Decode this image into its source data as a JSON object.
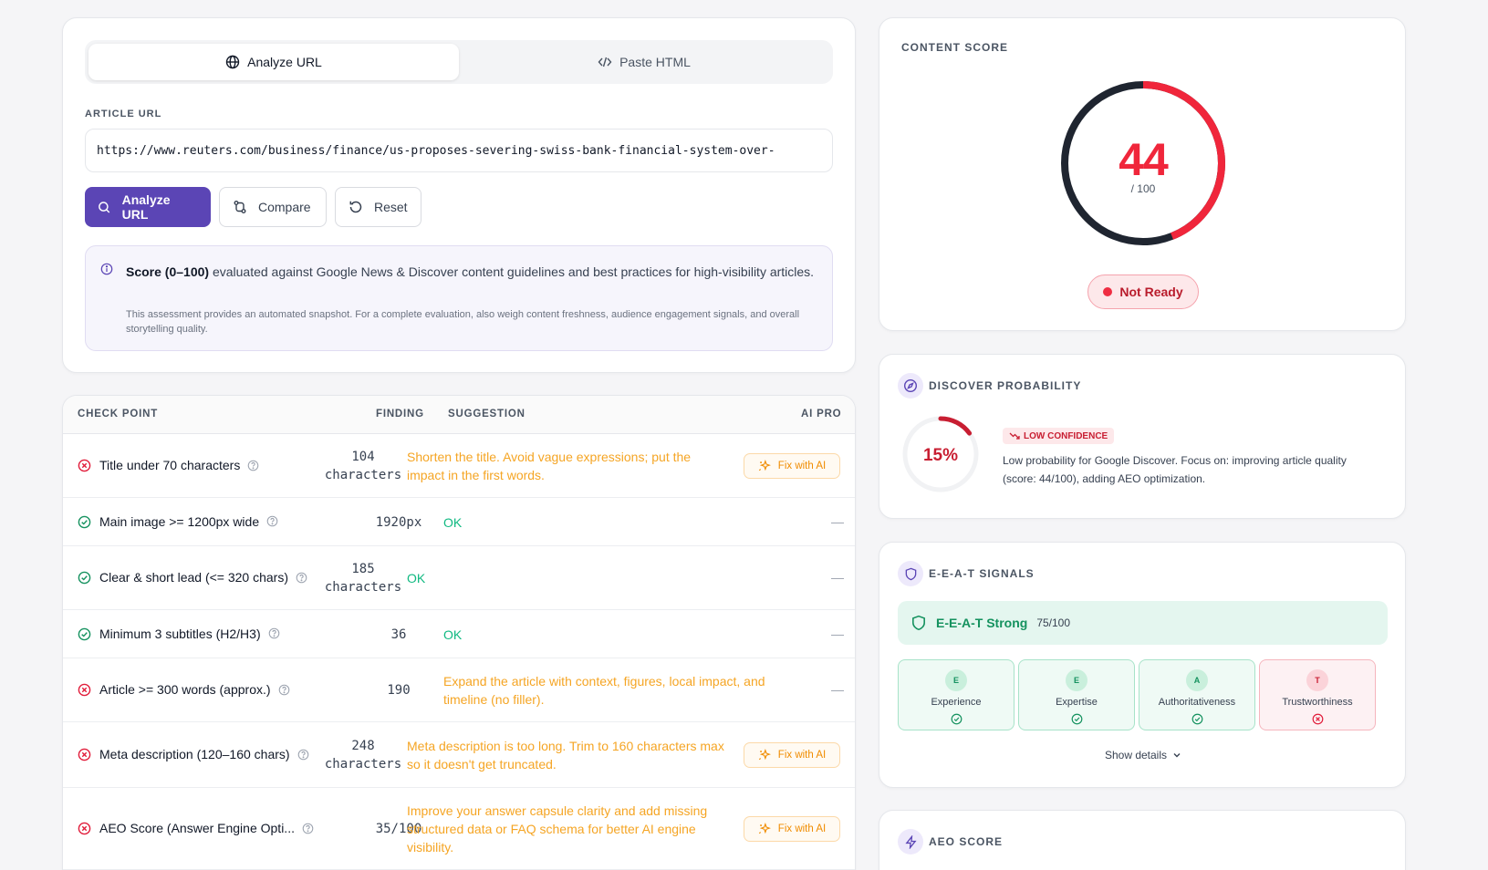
{
  "input_panel": {
    "tabs": [
      {
        "label": "Analyze URL",
        "icon": "globe-icon",
        "active": true
      },
      {
        "label": "Paste HTML",
        "icon": "code-icon",
        "active": false
      }
    ],
    "url_label": "ARTICLE URL",
    "url_value": "https://www.reuters.com/business/finance/us-proposes-severing-swiss-bank-financial-system-over-",
    "buttons": {
      "analyze": "Analyze URL",
      "compare": "Compare",
      "reset": "Reset"
    },
    "info": {
      "bold": "Score (0–100)",
      "main": " evaluated against Google News & Discover content guidelines and best practices for high-visibility articles.",
      "sub": "This assessment provides an automated snapshot. For a complete evaluation, also weigh content freshness, audience engagement signals, and overall storytelling quality."
    }
  },
  "checks_table": {
    "headers": {
      "check": "CHECK POINT",
      "finding": "FINDING",
      "suggestion": "SUGGESTION",
      "ai": "AI PRO"
    },
    "fix_label": "Fix with AI",
    "dash": "—",
    "rows": [
      {
        "status": "fail",
        "label": "Title under 70 characters",
        "finding": "104\ncharacters",
        "suggestion": "Shorten the title. Avoid vague expressions; put the impact in the first words.",
        "ai": "fix"
      },
      {
        "status": "pass",
        "label": "Main image >= 1200px wide",
        "finding": "1920px",
        "suggestion": "OK",
        "ai": "none"
      },
      {
        "status": "pass",
        "label": "Clear & short lead (<= 320 chars)",
        "finding": "185\ncharacters",
        "suggestion": "OK",
        "ai": "none"
      },
      {
        "status": "pass",
        "label": "Minimum 3 subtitles (H2/H3)",
        "finding": "36",
        "suggestion": "OK",
        "ai": "none"
      },
      {
        "status": "fail",
        "label": "Article >= 300 words (approx.)",
        "finding": "190",
        "suggestion": "Expand the article with context, figures, local impact, and timeline (no filler).",
        "ai": "none"
      },
      {
        "status": "fail",
        "label": "Meta description (120–160 chars)",
        "finding": "248\ncharacters",
        "suggestion": "Meta description is too long. Trim to 160 characters max so it doesn't get truncated.",
        "ai": "fix"
      },
      {
        "status": "fail",
        "label": "AEO Score (Answer Engine Opti...",
        "finding": "35/100",
        "suggestion": "Improve your answer capsule clarity and add missing structured data or FAQ schema for better AI engine visibility.",
        "ai": "fix"
      }
    ]
  },
  "content_score": {
    "title": "CONTENT SCORE",
    "score": "44",
    "score_value": 44,
    "out_of": "/ 100",
    "status": "Not Ready"
  },
  "discover": {
    "title": "DISCOVER PROBABILITY",
    "percent": "15%",
    "percent_value": 15,
    "confidence": "LOW CONFIDENCE",
    "text": "Low probability for Google Discover. Focus on: improving article quality (score: 44/100), adding AEO optimization."
  },
  "eeat": {
    "title": "E-E-A-T SIGNALS",
    "strength": "E-E-A-T Strong",
    "score": "75/100",
    "pillars": [
      {
        "letter": "E",
        "name": "Experience",
        "ok": true
      },
      {
        "letter": "E",
        "name": "Expertise",
        "ok": true
      },
      {
        "letter": "A",
        "name": "Authoritativeness",
        "ok": true
      },
      {
        "letter": "T",
        "name": "Trustworthiness",
        "ok": false
      }
    ],
    "show_details": "Show details"
  },
  "aeo": {
    "title": "AEO SCORE"
  },
  "colors": {
    "accent": "#5b45b5",
    "danger": "#f0263b",
    "success": "#10b981",
    "warning": "#f5a524"
  }
}
